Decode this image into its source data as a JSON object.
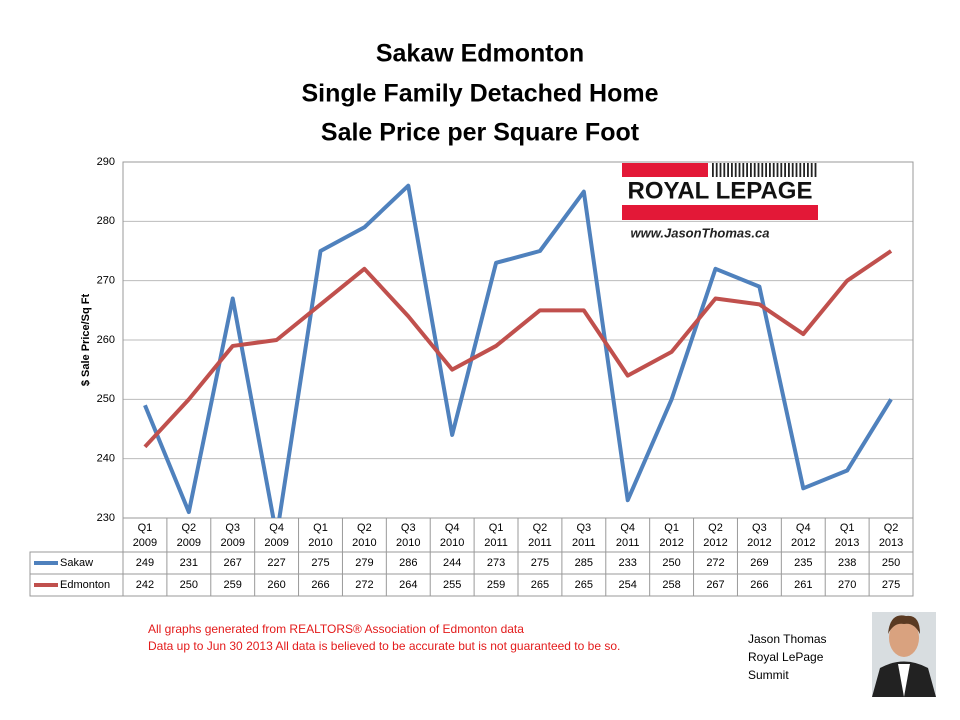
{
  "chart_data": {
    "type": "line",
    "title": [
      "Sakaw Edmonton",
      "Single Family Detached Home",
      "Sale Price per Square Foot"
    ],
    "y_label": "$ Sale Price/Sq Ft",
    "categories": [
      [
        "Q1",
        "2009"
      ],
      [
        "Q2",
        "2009"
      ],
      [
        "Q3",
        "2009"
      ],
      [
        "Q4",
        "2009"
      ],
      [
        "Q1",
        "2010"
      ],
      [
        "Q2",
        "2010"
      ],
      [
        "Q3",
        "2010"
      ],
      [
        "Q4",
        "2010"
      ],
      [
        "Q1",
        "2011"
      ],
      [
        "Q2",
        "2011"
      ],
      [
        "Q3",
        "2011"
      ],
      [
        "Q4",
        "2011"
      ],
      [
        "Q1",
        "2012"
      ],
      [
        "Q2",
        "2012"
      ],
      [
        "Q3",
        "2012"
      ],
      [
        "Q4",
        "2012"
      ],
      [
        "Q1",
        "2013"
      ],
      [
        "Q2",
        "2013"
      ]
    ],
    "series": [
      {
        "name": "Sakaw",
        "color": "#4f81bd",
        "values": [
          249,
          231,
          267,
          227,
          275,
          279,
          286,
          244,
          273,
          275,
          285,
          233,
          250,
          272,
          269,
          235,
          238,
          250
        ]
      },
      {
        "name": "Edmonton",
        "color": "#c0504d",
        "values": [
          242,
          250,
          259,
          260,
          266,
          272,
          264,
          255,
          259,
          265,
          265,
          254,
          258,
          267,
          266,
          261,
          270,
          275
        ]
      }
    ],
    "ylim": [
      230,
      290
    ],
    "yticks": [
      230,
      240,
      250,
      260,
      270,
      280,
      290
    ],
    "grid": true
  },
  "logo": {
    "brand": "ROYAL LEPAGE",
    "url": "www.JasonThomas.ca"
  },
  "footer": [
    "All graphs generated from REALTORS® Association of Edmonton data",
    "Data up to  Jun 30 2013  All data is believed to be accurate but is not guaranteed to be so."
  ],
  "signature": [
    "Jason Thomas",
    "Royal LePage",
    "Summit"
  ]
}
